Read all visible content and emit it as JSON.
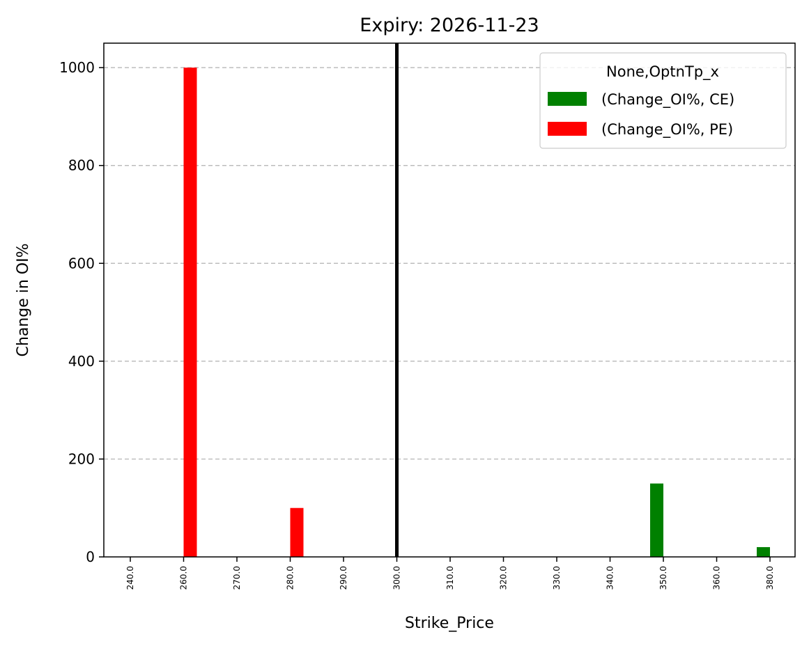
{
  "chart_data": {
    "type": "bar",
    "title": "Expiry: 2026-11-23",
    "xlabel": "Strike_Price",
    "ylabel": "Change in OI%",
    "categories": [
      "240.0",
      "260.0",
      "270.0",
      "280.0",
      "290.0",
      "300.0",
      "310.0",
      "320.0",
      "330.0",
      "340.0",
      "350.0",
      "360.0",
      "380.0"
    ],
    "series": [
      {
        "name": "(Change_OI%, CE)",
        "color": "#008000",
        "values": [
          0,
          0,
          0,
          0,
          0,
          0,
          0,
          0,
          0,
          0,
          150,
          0,
          20
        ]
      },
      {
        "name": "(Change_OI%, PE)",
        "color": "#ff0000",
        "values": [
          0,
          1000,
          0,
          100,
          0,
          0,
          0,
          0,
          0,
          0,
          0,
          0,
          0
        ]
      }
    ],
    "ylim": [
      0,
      1050
    ],
    "yticks": [
      0,
      200,
      400,
      600,
      800,
      1000
    ],
    "ytick_labels": [
      "0",
      "200",
      "400",
      "600",
      "800",
      "1000"
    ],
    "grid": "y-dashed",
    "legend": {
      "title": "None,OptnTp_x",
      "placement": "top-right"
    },
    "vline": {
      "category": "300.0",
      "color": "#000000"
    }
  }
}
